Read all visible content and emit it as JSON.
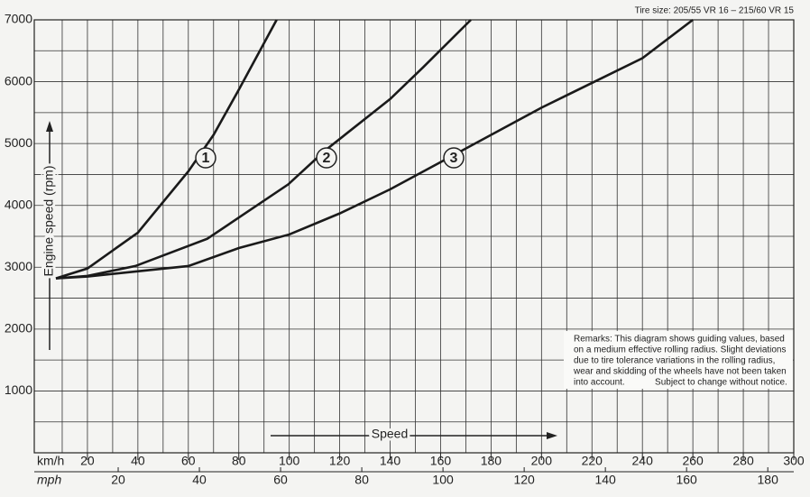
{
  "chart_data": {
    "type": "line",
    "annotation_top": "Tire size: 205/55 VR 16 – 215/60 VR 15",
    "y_label": "Engine speed (rpm)",
    "x_label": "Speed",
    "x_unit": "km/h",
    "x2_unit": "mph",
    "remarks": [
      "Remarks: This diagram shows guiding values, based",
      "on a medium effective rolling radius. Slight deviations",
      "due to tire tolerance variations in the rolling radius,",
      "wear and skidding of the wheels have not been taken",
      "into account.            Subject to change without notice."
    ],
    "xlim": [
      0,
      300
    ],
    "xticks": [
      20,
      40,
      60,
      80,
      100,
      120,
      140,
      160,
      180,
      200,
      220,
      240,
      260,
      280,
      300
    ],
    "x2lim": [
      0,
      186.4
    ],
    "x2ticks": [
      20,
      40,
      60,
      80,
      100,
      120,
      140,
      160,
      180
    ],
    "ylim": [
      0,
      7000
    ],
    "yticks": [
      1000,
      2000,
      3000,
      4000,
      5000,
      6000,
      7000
    ],
    "grid": true,
    "series": [
      {
        "name": "1",
        "color": "#1a1a1a",
        "x": [
          7.5,
          20,
          40,
          60,
          70,
          80,
          95
        ],
        "values": [
          2820,
          2980,
          3560,
          4550,
          5140,
          5870,
          7000
        ]
      },
      {
        "name": "2",
        "color": "#1a1a1a",
        "x": [
          7.5,
          20,
          39,
          67.5,
          99.6,
          114,
          140,
          153,
          172
        ],
        "values": [
          2820,
          2860,
          3020,
          3460,
          4340,
          4880,
          5720,
          6230,
          7000
        ]
      },
      {
        "name": "3",
        "color": "#1a1a1a",
        "x": [
          7.5,
          20,
          60,
          80,
          100,
          120,
          140,
          160,
          200,
          240,
          260
        ],
        "values": [
          2820,
          2850,
          3020,
          3310,
          3530,
          3870,
          4260,
          4700,
          5580,
          6380,
          7000
        ]
      }
    ]
  }
}
